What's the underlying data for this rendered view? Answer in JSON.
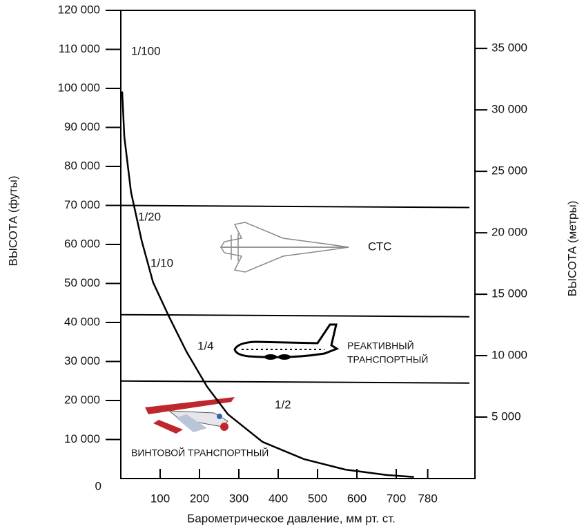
{
  "chart_data": {
    "type": "line",
    "x_label": "Барометрическое давление, мм рт. ст.",
    "y_label": "ВЫСОТА (футы)",
    "y2_label": "ВЫСОТА (метры)",
    "x": [
      3.5,
      9,
      26,
      53,
      82,
      123,
      167,
      219,
      272,
      360,
      465,
      570,
      675,
      745
    ],
    "values": [
      99200,
      87600,
      73400,
      61000,
      50300,
      41400,
      32500,
      23600,
      16500,
      9400,
      5000,
      2300,
      900,
      400
    ],
    "color": "#000000",
    "xlim": [
      0,
      900
    ],
    "xticks": [
      100,
      200,
      300,
      400,
      500,
      600,
      700,
      780
    ],
    "ylim": [
      0,
      120000
    ],
    "yticks": [
      0,
      {
        "value": 10000,
        "label": "10 000"
      },
      {
        "value": 20000,
        "label": "20 000"
      },
      {
        "value": 30000,
        "label": "30 000"
      },
      {
        "value": 40000,
        "label": "40 000"
      },
      {
        "value": 50000,
        "label": "50 000"
      },
      {
        "value": 60000,
        "label": "60 000"
      },
      {
        "value": 70000,
        "label": "70 000"
      },
      {
        "value": 80000,
        "label": "80 000"
      },
      {
        "value": 90000,
        "label": "90 000"
      },
      {
        "value": 100000,
        "label": "100 000"
      },
      {
        "value": 110000,
        "label": "110 000"
      },
      {
        "value": 120000,
        "label": "120 000"
      }
    ],
    "y2lim": [
      0,
      38100
    ],
    "y2ticks": [
      {
        "value": 5000,
        "label": "5 000"
      },
      {
        "value": 10000,
        "label": "10 000"
      },
      {
        "value": 15000,
        "label": "15 000"
      },
      {
        "value": 20000,
        "label": "20 000"
      },
      {
        "value": 25000,
        "label": "25 000"
      },
      {
        "value": 30000,
        "label": "30 000"
      },
      {
        "value": 35000,
        "label": "35 000"
      }
    ],
    "hlines": [
      70000,
      42000,
      25000
    ],
    "annotations": [
      "1/100",
      "1/20",
      "1/10",
      "1/4",
      "1/2",
      "СТС",
      "РЕАКТИВНЫЙ",
      "ТРАНСПОРТНЫЙ",
      "ВИНТОВОЙ ТРАНСПОРТНЫЙ"
    ]
  }
}
